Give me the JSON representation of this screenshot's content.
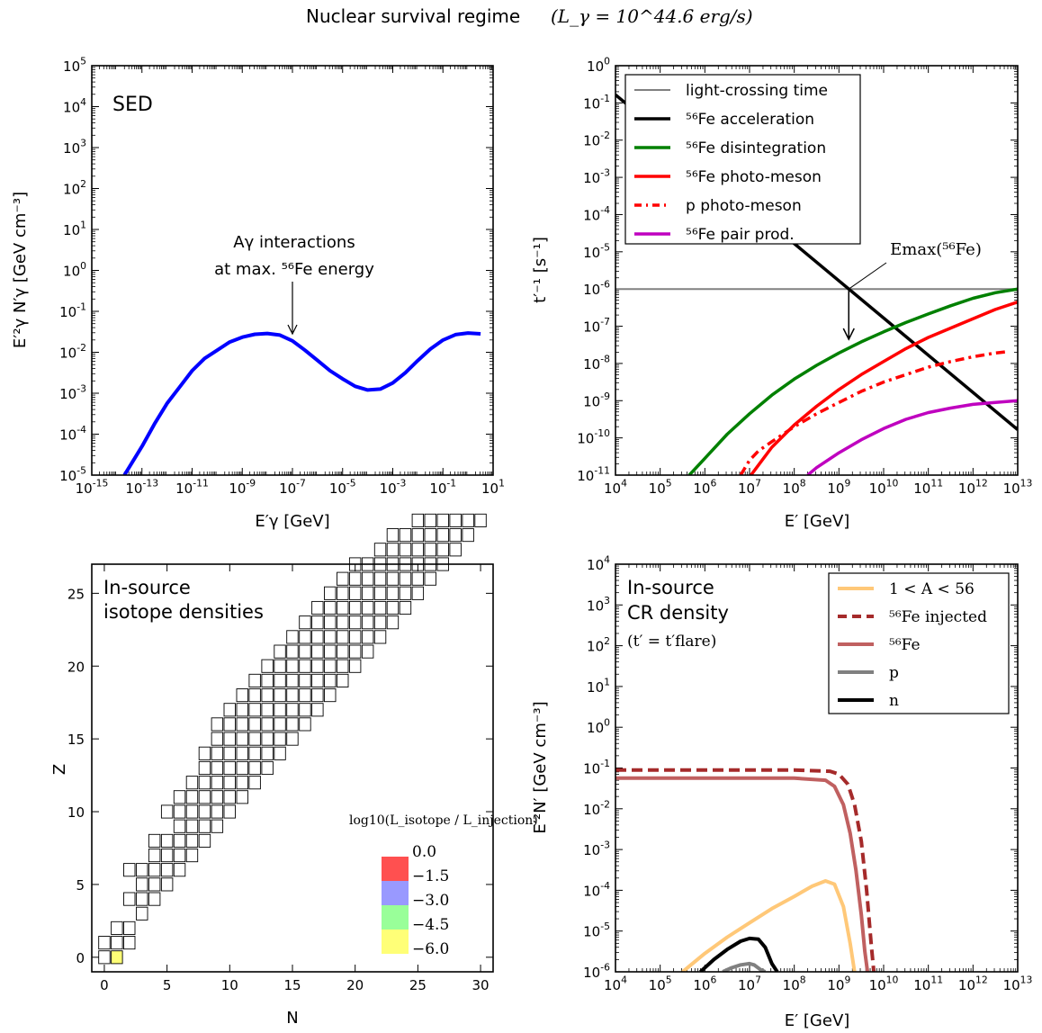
{
  "figure_title": "Nuclear survival regime",
  "figure_title_math": "(L_γ = 10^44.6 erg/s)",
  "chart_data": [
    {
      "panel": "top-left",
      "type": "line",
      "label": "SED",
      "xlabel": "E′γ [GeV]",
      "ylabel": "E′²γ N′γ [GeV cm⁻³]",
      "xscale": "log",
      "yscale": "log",
      "xlim_exp": [
        -15,
        1
      ],
      "ylim_exp": [
        -5,
        5
      ],
      "x_tick_exponents": [
        -15,
        -13,
        -11,
        -9,
        -7,
        -5,
        -3,
        -1,
        1
      ],
      "y_tick_exponents": [
        -5,
        -4,
        -3,
        -2,
        -1,
        0,
        1,
        2,
        3,
        4,
        5
      ],
      "annotation": {
        "line1": "Aγ interactions",
        "line2": "at max. ⁵⁶Fe energy",
        "x_exp": -7.0,
        "y_exp": -1.55
      },
      "series": [
        {
          "color": "#0000ff",
          "x_exp": [
            -13.7,
            -13.5,
            -13.0,
            -12.5,
            -12.0,
            -11.5,
            -11.0,
            -10.5,
            -10.0,
            -9.5,
            -9.0,
            -8.5,
            -8.0,
            -7.5,
            -7.0,
            -6.5,
            -6.0,
            -5.5,
            -5.0,
            -4.5,
            -4.0,
            -3.5,
            -3.0,
            -2.5,
            -2.0,
            -1.5,
            -1.0,
            -0.5,
            0.0,
            0.5
          ],
          "y_exp": [
            -5.0,
            -4.8,
            -4.3,
            -3.75,
            -3.25,
            -2.85,
            -2.45,
            -2.15,
            -1.95,
            -1.75,
            -1.63,
            -1.56,
            -1.54,
            -1.58,
            -1.72,
            -1.95,
            -2.2,
            -2.45,
            -2.65,
            -2.83,
            -2.92,
            -2.9,
            -2.75,
            -2.5,
            -2.2,
            -1.92,
            -1.7,
            -1.57,
            -1.53,
            -1.55
          ]
        }
      ]
    },
    {
      "panel": "top-right",
      "type": "line",
      "xlabel": "E′ [GeV]",
      "ylabel": "t′⁻¹ [s⁻¹]",
      "xscale": "log",
      "yscale": "log",
      "xlim_exp": [
        4,
        13
      ],
      "ylim_exp": [
        -11,
        0
      ],
      "x_tick_exponents": [
        4,
        5,
        6,
        7,
        8,
        9,
        10,
        11,
        12,
        13
      ],
      "y_tick_exponents": [
        -11,
        -10,
        -9,
        -8,
        -7,
        -6,
        -5,
        -4,
        -3,
        -2,
        -1,
        0
      ],
      "legend_position": "top-left",
      "annotation": {
        "label": "Emax(⁵⁶Fe)",
        "x_exp": 9.22,
        "y_exp": -6.0
      },
      "series": [
        {
          "name": "light-crossing time",
          "color": "#808080",
          "style": "solid",
          "x_exp": [
            4,
            13
          ],
          "y_exp": [
            -6.0,
            -6.0
          ]
        },
        {
          "name": "⁵⁶Fe acceleration",
          "color": "#000000",
          "style": "solid",
          "x_exp": [
            4,
            13
          ],
          "y_exp": [
            -0.78,
            -9.78
          ]
        },
        {
          "name": "⁵⁶Fe disintegration",
          "color": "#008000",
          "style": "solid",
          "x_exp": [
            5.65,
            6.0,
            6.5,
            7.0,
            7.5,
            8.0,
            8.5,
            9.0,
            9.5,
            10.0,
            10.5,
            11.0,
            11.5,
            12.0,
            12.5,
            13.0
          ],
          "y_exp": [
            -11.0,
            -10.55,
            -9.9,
            -9.35,
            -8.85,
            -8.42,
            -8.05,
            -7.72,
            -7.42,
            -7.15,
            -6.9,
            -6.67,
            -6.45,
            -6.25,
            -6.1,
            -6.0
          ]
        },
        {
          "name": "⁵⁶Fe photo-meson",
          "color": "#ff0000",
          "style": "solid",
          "x_exp": [
            7.0,
            7.5,
            8.0,
            8.5,
            9.0,
            9.5,
            10.0,
            10.5,
            11.0,
            11.5,
            12.0,
            12.5,
            13.0
          ],
          "y_exp": [
            -11.05,
            -10.25,
            -9.65,
            -9.15,
            -8.7,
            -8.3,
            -7.95,
            -7.6,
            -7.3,
            -7.05,
            -6.8,
            -6.55,
            -6.35
          ]
        },
        {
          "name": "p photo-meson",
          "color": "#ff0000",
          "style": "dashdot",
          "x_exp": [
            6.8,
            7.0,
            7.2,
            7.5,
            8.0,
            8.5,
            9.0,
            9.5,
            10.0,
            10.5,
            11.0,
            11.5,
            12.0,
            12.5,
            12.8
          ],
          "y_exp": [
            -11.0,
            -10.6,
            -10.35,
            -10.1,
            -9.7,
            -9.35,
            -9.05,
            -8.75,
            -8.5,
            -8.3,
            -8.1,
            -7.95,
            -7.82,
            -7.72,
            -7.68
          ]
        },
        {
          "name": "⁵⁶Fe pair prod.",
          "color": "#bf00bf",
          "style": "solid",
          "x_exp": [
            8.3,
            8.5,
            9.0,
            9.5,
            10.0,
            10.5,
            11.0,
            11.5,
            12.0,
            12.5,
            13.0
          ],
          "y_exp": [
            -11.0,
            -10.8,
            -10.4,
            -10.05,
            -9.75,
            -9.5,
            -9.32,
            -9.2,
            -9.1,
            -9.05,
            -9.0
          ]
        }
      ]
    },
    {
      "panel": "bottom-left",
      "type": "heatmap",
      "label_line1": "In-source",
      "label_line2": "isotope densities",
      "xlabel": "N",
      "ylabel": "Z",
      "xlim": [
        -1,
        31
      ],
      "ylim": [
        -1,
        27
      ],
      "x_ticks": [
        0,
        5,
        10,
        15,
        20,
        25,
        30
      ],
      "y_ticks": [
        0,
        5,
        10,
        15,
        20,
        25
      ],
      "colorbar_title": "log10(L_isotope / L_injection)",
      "colorbar": [
        {
          "label": "0.0",
          "color": "#ff5050"
        },
        {
          "label": "−1.5",
          "color": "#9999ff"
        },
        {
          "label": "−3.0",
          "color": "#99ff99"
        },
        {
          "label": "−4.5",
          "color": "#ffff77"
        },
        {
          "label": "−6.0",
          "color": "#ffffff"
        }
      ],
      "bands": [
        [
          0,
          0,
          1
        ],
        [
          1,
          0,
          2
        ],
        [
          2,
          1,
          2
        ],
        [
          3,
          3,
          3
        ],
        [
          4,
          2,
          4
        ],
        [
          5,
          3,
          5
        ],
        [
          6,
          2,
          6
        ],
        [
          7,
          4,
          7
        ],
        [
          8,
          4,
          8
        ],
        [
          9,
          6,
          9
        ],
        [
          10,
          5,
          10
        ],
        [
          11,
          6,
          11
        ],
        [
          12,
          7,
          12
        ],
        [
          13,
          8,
          13
        ],
        [
          14,
          8,
          14
        ],
        [
          15,
          9,
          15
        ],
        [
          16,
          9,
          16
        ],
        [
          17,
          10,
          17
        ],
        [
          18,
          11,
          18
        ],
        [
          19,
          12,
          19
        ],
        [
          20,
          13,
          20
        ],
        [
          21,
          14,
          21
        ],
        [
          22,
          15,
          22
        ],
        [
          23,
          16,
          23
        ],
        [
          24,
          17,
          24
        ],
        [
          25,
          18,
          25
        ],
        [
          26,
          19,
          26
        ],
        [
          27,
          20,
          27
        ],
        [
          28,
          22,
          28
        ],
        [
          29,
          23,
          29
        ],
        [
          30,
          25,
          30
        ]
      ],
      "highlighted": [
        {
          "n": 1,
          "z": 0,
          "color": "#ffff77"
        },
        {
          "n": 30,
          "z": 26,
          "color": "#ff5050"
        },
        {
          "n": 29,
          "z": 26,
          "color": "#99ff99"
        },
        {
          "n": 28,
          "z": 26,
          "color": "#ffff77"
        },
        {
          "n": 28,
          "z": 25,
          "color": "#ffff77"
        },
        {
          "n": 29,
          "z": 25,
          "color": "#ffff77"
        },
        {
          "n": 30,
          "z": 25,
          "color": "#ffff77"
        },
        {
          "n": 28,
          "z": 24,
          "color": "#ffff77"
        }
      ]
    },
    {
      "panel": "bottom-right",
      "type": "line",
      "label_line1": "In-source",
      "label_line2": "CR density",
      "label_line3": "(t′ = t′flare)",
      "xlabel": "E′ [GeV]",
      "ylabel": "E′²N′ [GeV cm⁻³]",
      "xscale": "log",
      "yscale": "log",
      "xlim_exp": [
        4,
        13
      ],
      "ylim_exp": [
        -6,
        4
      ],
      "x_tick_exponents": [
        4,
        5,
        6,
        7,
        8,
        9,
        10,
        11,
        12,
        13
      ],
      "y_tick_exponents": [
        -6,
        -5,
        -4,
        -3,
        -2,
        -1,
        0,
        1,
        2,
        3,
        4
      ],
      "legend_position": "top-right",
      "series": [
        {
          "name": "1 < A < 56",
          "color": "#ffc878",
          "style": "solid",
          "x_exp": [
            5.5,
            6.0,
            6.5,
            7.0,
            7.5,
            8.0,
            8.4,
            8.7,
            8.9,
            9.1,
            9.25,
            9.35
          ],
          "y_exp": [
            -6.0,
            -5.55,
            -5.15,
            -4.8,
            -4.45,
            -4.15,
            -3.9,
            -3.77,
            -3.85,
            -4.4,
            -5.3,
            -6.0
          ]
        },
        {
          "name": "⁵⁶Fe injected",
          "color": "#a52a2a",
          "style": "dashed",
          "x_exp": [
            4,
            5,
            6,
            7,
            8,
            8.8,
            9.0,
            9.2,
            9.35,
            9.5,
            9.62,
            9.72,
            9.78
          ],
          "y_exp": [
            -1.05,
            -1.05,
            -1.05,
            -1.05,
            -1.05,
            -1.08,
            -1.15,
            -1.4,
            -1.9,
            -2.8,
            -4.0,
            -5.3,
            -6.0
          ]
        },
        {
          "name": "⁵⁶Fe",
          "color": "#c06060",
          "style": "solid",
          "x_exp": [
            4,
            5,
            6,
            7,
            8,
            8.7,
            8.9,
            9.1,
            9.25,
            9.38,
            9.5,
            9.58,
            9.64
          ],
          "y_exp": [
            -1.25,
            -1.25,
            -1.25,
            -1.25,
            -1.25,
            -1.3,
            -1.45,
            -1.9,
            -2.6,
            -3.5,
            -4.6,
            -5.5,
            -6.0
          ]
        },
        {
          "name": "p",
          "color": "#808080",
          "style": "solid",
          "x_exp": [
            6.4,
            6.6,
            6.8,
            7.0,
            7.1,
            7.25,
            7.35
          ],
          "y_exp": [
            -6.0,
            -5.9,
            -5.83,
            -5.8,
            -5.83,
            -5.95,
            -6.0
          ]
        },
        {
          "name": "n",
          "color": "#000000",
          "style": "solid",
          "x_exp": [
            5.9,
            6.2,
            6.5,
            6.8,
            7.0,
            7.2,
            7.35,
            7.5,
            7.62
          ],
          "y_exp": [
            -6.0,
            -5.7,
            -5.45,
            -5.25,
            -5.18,
            -5.2,
            -5.4,
            -5.8,
            -6.0
          ]
        }
      ]
    }
  ]
}
